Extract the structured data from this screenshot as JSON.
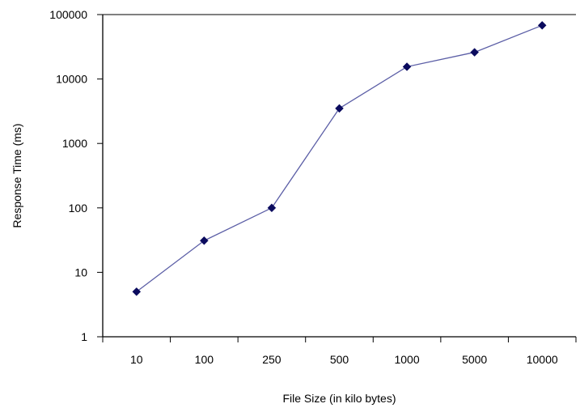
{
  "chart_data": {
    "type": "line",
    "title": "",
    "xlabel": "File Size (in kilo bytes)",
    "ylabel": "Response Time (ms)",
    "categories": [
      "10",
      "100",
      "250",
      "500",
      "1000",
      "5000",
      "10000"
    ],
    "series": [
      {
        "values": [
          5,
          31,
          100,
          3500,
          15500,
          26000,
          68000
        ]
      }
    ],
    "y_scale": "log",
    "ylim": [
      1,
      100000
    ],
    "y_ticks": [
      "1",
      "10",
      "100",
      "1000",
      "10000",
      "100000"
    ],
    "grid": false,
    "legend": "none",
    "marker": "diamond",
    "line_color": "#5b5ea6",
    "marker_color": "#0b0b5e"
  }
}
